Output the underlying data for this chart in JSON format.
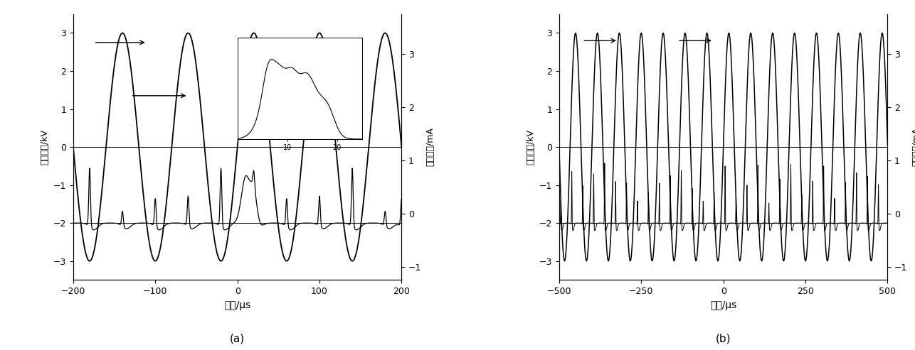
{
  "fig_width": 12.86,
  "fig_height": 4.93,
  "dpi": 100,
  "background_color": "#ffffff",
  "ax_a": {
    "xlim": [
      -200,
      200
    ],
    "ylim_left": [
      -3.5,
      3.5
    ],
    "ylim_right": [
      -1.25,
      3.75
    ],
    "xlabel": "时间/μs",
    "ylabel_left": "外加电压/kV",
    "ylabel_right": "放电电流/mA",
    "yticks_left": [
      -3,
      -2,
      -1,
      0,
      1,
      2,
      3
    ],
    "yticks_right": [
      -1,
      0,
      1,
      2,
      3
    ],
    "xticks": [
      -200,
      -100,
      0,
      100,
      200
    ],
    "label_a": "(a)",
    "voltage_period": 80.0,
    "voltage_amplitude": 3.0
  },
  "ax_b": {
    "xlim": [
      -500,
      500
    ],
    "ylim_left": [
      -3.5,
      3.5
    ],
    "ylim_right": [
      -1.25,
      3.75
    ],
    "xlabel": "时间/μs",
    "ylabel_left": "外加电压/kV",
    "ylabel_right": "放电电流/mA",
    "yticks_left": [
      -3,
      -2,
      -1,
      0,
      1,
      2,
      3
    ],
    "yticks_right": [
      -1,
      0,
      1,
      2,
      3
    ],
    "xticks": [
      -500,
      -250,
      0,
      250,
      500
    ],
    "label_b": "(b)",
    "voltage_period": 66.7,
    "voltage_amplitude": 3.0
  }
}
